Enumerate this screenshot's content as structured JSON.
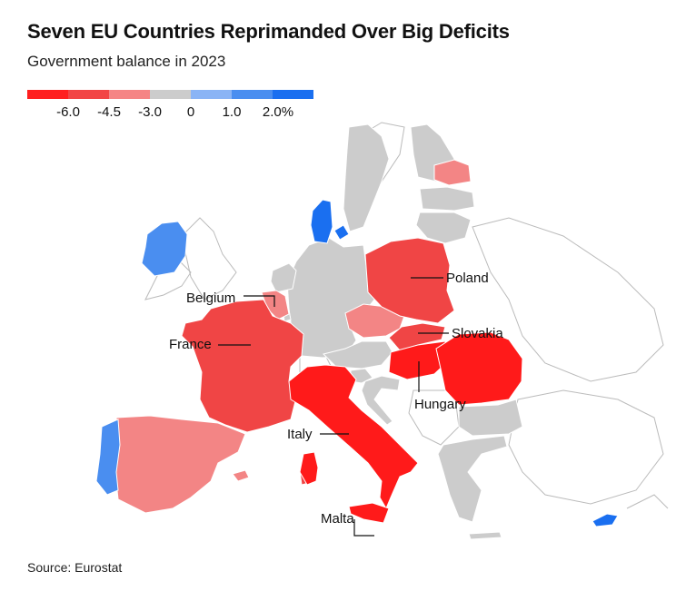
{
  "title": "Seven EU Countries Reprimanded Over Big Deficits",
  "subtitle": "Government balance in 2023",
  "source": "Source: Eurostat",
  "legend": {
    "colors": [
      "#ff1f1f",
      "#f24545",
      "#f58585",
      "#cccccc",
      "#8ab4f5",
      "#4a8ef0",
      "#1a6ff0"
    ],
    "ticks": [
      "-6.0",
      "-4.5",
      "-3.0",
      "0",
      "1.0",
      "2.0%"
    ]
  },
  "palette": {
    "deep_red": "#ff1a1a",
    "red": "#f04545",
    "light_red": "#f38585",
    "grey": "#cccccc",
    "blue": "#4a8ef0",
    "deep_blue": "#1a6ff0",
    "outline": "#ffffff"
  },
  "labels": {
    "belgium": "Belgium",
    "france": "France",
    "poland": "Poland",
    "slovakia": "Slovakia",
    "hungary": "Hungary",
    "italy": "Italy",
    "malta": "Malta"
  }
}
